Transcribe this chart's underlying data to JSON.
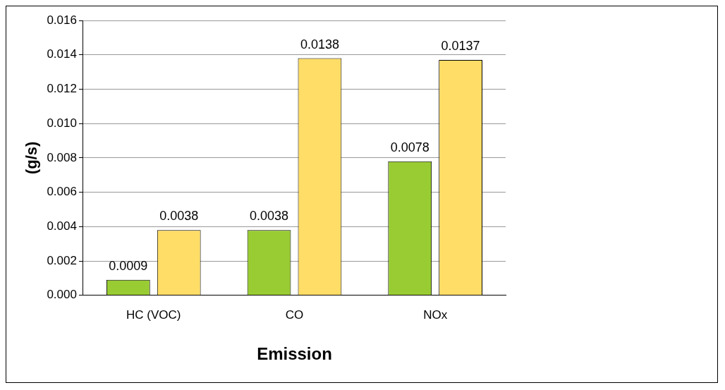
{
  "chart_data": {
    "type": "bar",
    "xlabel": "Emission",
    "ylabel": "(g/s)",
    "categories": [
      "HC (VOC)",
      "CO",
      "NOx"
    ],
    "series": [
      {
        "color": "#99cc33",
        "values": [
          0.0009,
          0.0038,
          0.0078
        ]
      },
      {
        "color": "#ffdd66",
        "values": [
          0.0038,
          0.0138,
          0.0137
        ]
      }
    ],
    "ylim": [
      0,
      0.016
    ],
    "yticks": [
      {
        "value": 0,
        "label": "0.000"
      },
      {
        "value": 0.002,
        "label": "0.002"
      },
      {
        "value": 0.004,
        "label": "0.004"
      },
      {
        "value": 0.006,
        "label": "0.006"
      },
      {
        "value": 0.008,
        "label": "0.008"
      },
      {
        "value": 0.01,
        "label": "0.010"
      },
      {
        "value": 0.012,
        "label": "0.012"
      },
      {
        "value": 0.014,
        "label": "0.014"
      },
      {
        "value": 0.016,
        "label": "0.016"
      }
    ],
    "grid": "y",
    "data_labels": true,
    "legend": false
  }
}
